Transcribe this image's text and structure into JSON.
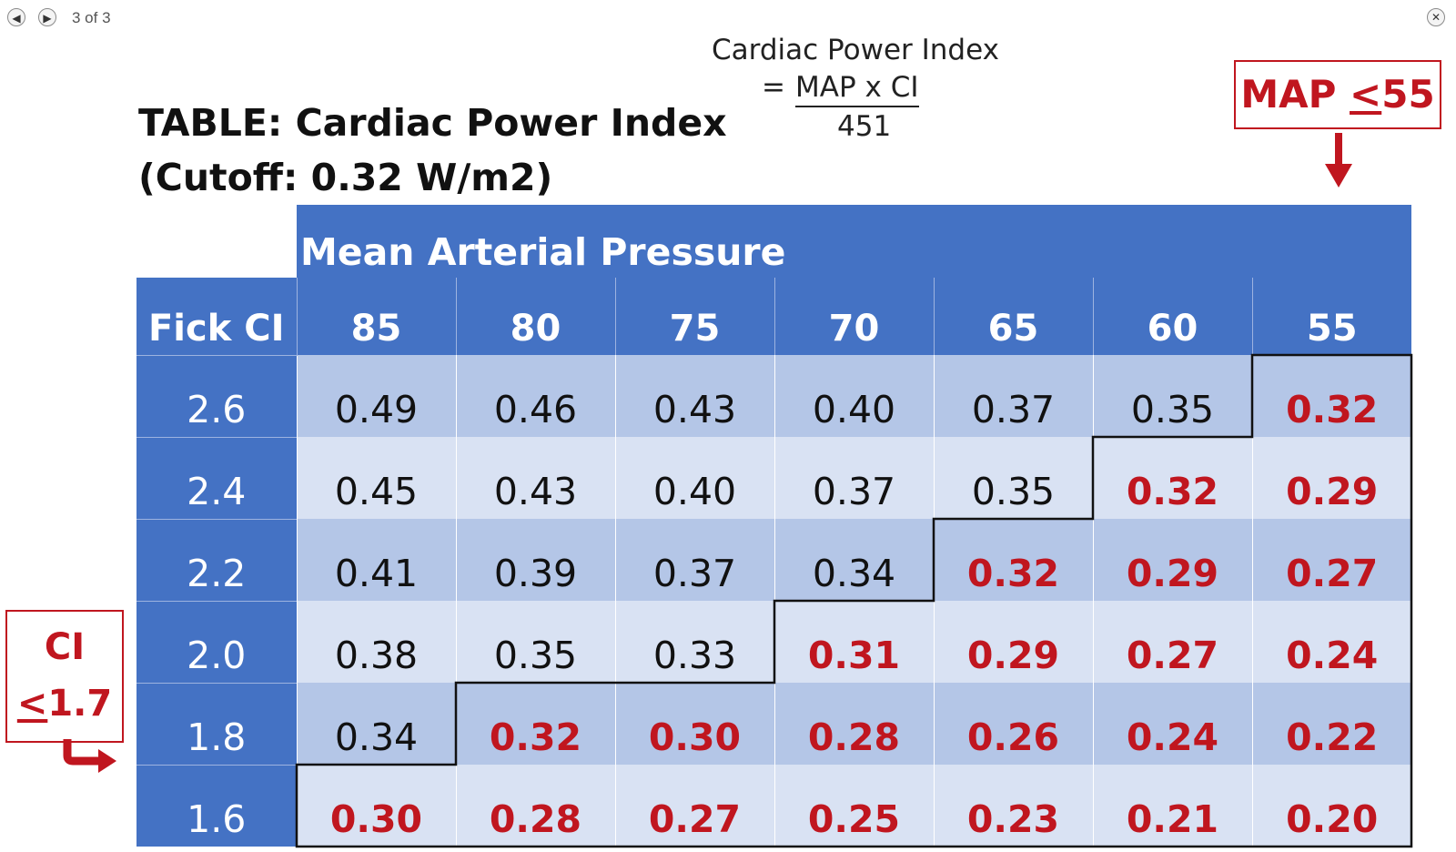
{
  "viewer": {
    "prev_icon": "◀",
    "next_icon": "▶",
    "counter": "3 of 3",
    "close_icon": "✕"
  },
  "slide": {
    "title_line1": "TABLE: Cardiac Power Index",
    "title_line2": "(Cutoff: 0.32 W/m2)",
    "formula": {
      "title": "Cardiac Power Index",
      "equals": "=",
      "numerator": "MAP x CI",
      "denominator": "451"
    },
    "map_callout": {
      "prefix": "MAP ",
      "symbol": "<",
      "value": "55"
    },
    "ci_callout": {
      "line1": "CI",
      "symbol": "<",
      "value": "1.7"
    }
  },
  "table": {
    "group_header": "Mean Arterial Pressure",
    "corner_header": "Fick CI",
    "columns": [
      "85",
      "80",
      "75",
      "70",
      "65",
      "60",
      "55"
    ],
    "rows": [
      {
        "ci": "2.6",
        "values": [
          "0.49",
          "0.46",
          "0.43",
          "0.40",
          "0.37",
          "0.35",
          "0.32"
        ],
        "low_from": 6
      },
      {
        "ci": "2.4",
        "values": [
          "0.45",
          "0.43",
          "0.40",
          "0.37",
          "0.35",
          "0.32",
          "0.29"
        ],
        "low_from": 5
      },
      {
        "ci": "2.2",
        "values": [
          "0.41",
          "0.39",
          "0.37",
          "0.34",
          "0.32",
          "0.29",
          "0.27"
        ],
        "low_from": 4
      },
      {
        "ci": "2.0",
        "values": [
          "0.38",
          "0.35",
          "0.33",
          "0.31",
          "0.29",
          "0.27",
          "0.24"
        ],
        "low_from": 3
      },
      {
        "ci": "1.8",
        "values": [
          "0.34",
          "0.32",
          "0.30",
          "0.28",
          "0.26",
          "0.24",
          "0.22"
        ],
        "low_from": 1
      },
      {
        "ci": "1.6",
        "values": [
          "0.30",
          "0.28",
          "0.27",
          "0.25",
          "0.23",
          "0.21",
          "0.20"
        ],
        "low_from": 0
      }
    ]
  },
  "colors": {
    "header_blue": "#4472c4",
    "row_dark": "#b4c6e7",
    "row_light": "#d9e2f3",
    "low_red": "#c0161f"
  },
  "icons": {
    "map_arrow": "arrow-down-icon",
    "ci_arrow": "arrow-bend-right-icon"
  }
}
